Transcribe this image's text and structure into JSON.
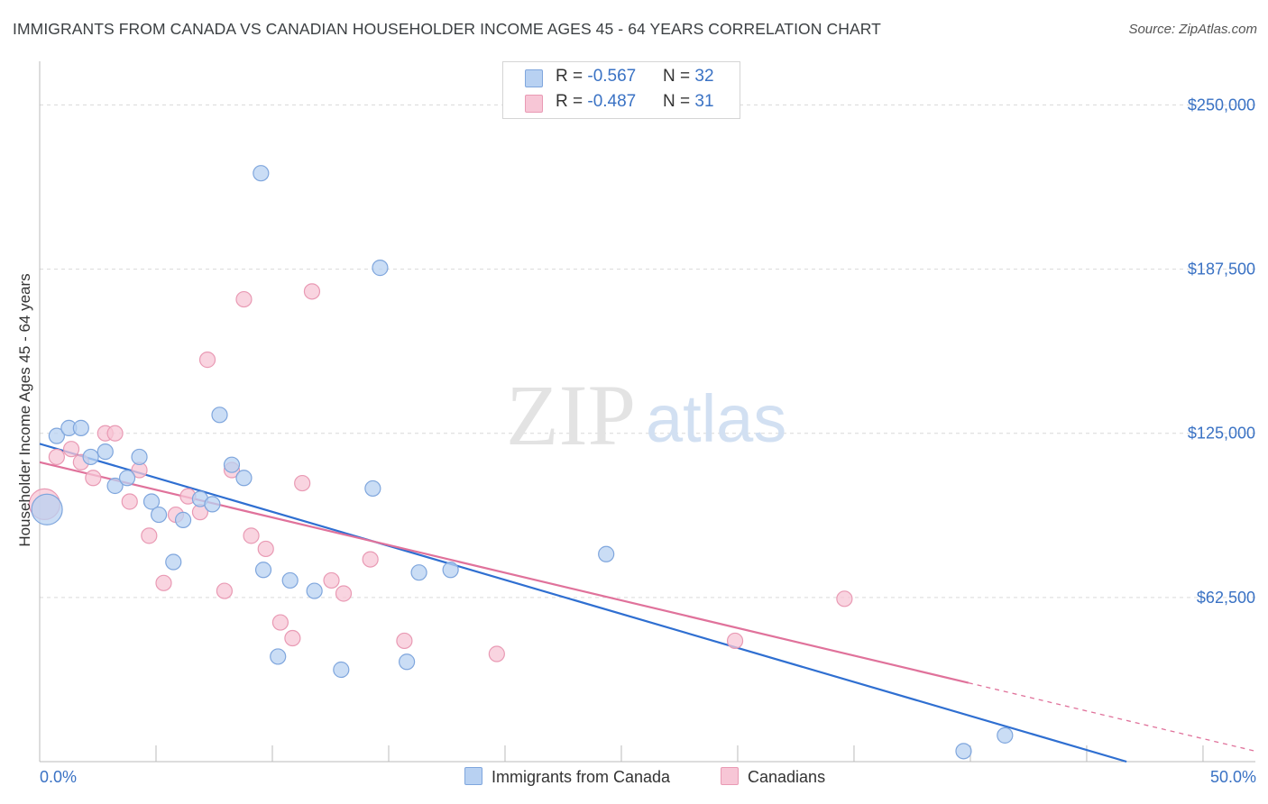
{
  "title": "IMMIGRANTS FROM CANADA VS CANADIAN HOUSEHOLDER INCOME AGES 45 - 64 YEARS CORRELATION CHART",
  "source": "Source: ZipAtlas.com",
  "watermark": {
    "zip": "ZIP",
    "atlas": "atlas"
  },
  "legend_top": {
    "rows": [
      {
        "r_label": "R = ",
        "r_value": "-0.567",
        "n_label": "N = ",
        "n_value": "32"
      },
      {
        "r_label": "R = ",
        "r_value": "-0.487",
        "n_label": "N = ",
        "n_value": "31"
      }
    ]
  },
  "legend_bottom": {
    "series1": "Immigrants from Canada",
    "series2": "Canadians"
  },
  "colors": {
    "blue_fill": "#b8d1f2",
    "blue_stroke": "#7fa6dd",
    "blue_line": "#2f6fd1",
    "pink_fill": "#f7c6d6",
    "pink_stroke": "#e99ab4",
    "pink_line": "#e0729b",
    "axis_text": "#3a72c4",
    "grid": "#d9d9d9"
  },
  "chart_data": {
    "type": "scatter",
    "title": "IMMIGRANTS FROM CANADA VS CANADIAN HOUSEHOLDER INCOME AGES 45 - 64 YEARS CORRELATION CHART",
    "xlabel": "",
    "ylabel": "Householder Income Ages 45 - 64 years",
    "xlim": [
      0,
      50
    ],
    "ylim": [
      0,
      262500
    ],
    "x_tick_labels": [
      "0.0%",
      "50.0%"
    ],
    "y_ticks": [
      62500,
      125000,
      187500,
      250000
    ],
    "y_tick_labels": [
      "$62,500",
      "$125,000",
      "$187,500",
      "$250,000"
    ],
    "grid": true,
    "legend_position": "top-center",
    "series": [
      {
        "name": "Immigrants from Canada",
        "color": "#b8d1f2",
        "points": [
          [
            0.3,
            96000,
            1
          ],
          [
            0.7,
            124000,
            0
          ],
          [
            1.2,
            127000,
            0
          ],
          [
            1.7,
            127000,
            0
          ],
          [
            2.1,
            116000,
            0
          ],
          [
            2.7,
            118000,
            0
          ],
          [
            3.1,
            105000,
            0
          ],
          [
            3.6,
            108000,
            0
          ],
          [
            4.1,
            116000,
            0
          ],
          [
            4.6,
            99000,
            0
          ],
          [
            4.9,
            94000,
            0
          ],
          [
            5.5,
            76000,
            0
          ],
          [
            5.9,
            92000,
            0
          ],
          [
            6.6,
            100000,
            0
          ],
          [
            7.1,
            98000,
            0
          ],
          [
            7.4,
            132000,
            0
          ],
          [
            7.9,
            113000,
            0
          ],
          [
            8.4,
            108000,
            0
          ],
          [
            9.1,
            224000,
            0
          ],
          [
            9.2,
            73000,
            0
          ],
          [
            9.8,
            40000,
            0
          ],
          [
            10.3,
            69000,
            0
          ],
          [
            11.3,
            65000,
            0
          ],
          [
            12.4,
            35000,
            0
          ],
          [
            13.7,
            104000,
            0
          ],
          [
            14.0,
            188000,
            0
          ],
          [
            15.1,
            38000,
            0
          ],
          [
            15.6,
            72000,
            0
          ],
          [
            16.9,
            73000,
            0
          ],
          [
            23.3,
            79000,
            0
          ],
          [
            38.0,
            4000,
            0
          ],
          [
            39.7,
            10000,
            0
          ]
        ],
        "trend": {
          "x0": 0,
          "y0": 121000,
          "x1": 44.7,
          "y1": 0
        }
      },
      {
        "name": "Canadians",
        "color": "#f7c6d6",
        "points": [
          [
            0.2,
            98000,
            1
          ],
          [
            0.7,
            116000,
            0
          ],
          [
            1.3,
            119000,
            0
          ],
          [
            1.7,
            114000,
            0
          ],
          [
            2.2,
            108000,
            0
          ],
          [
            2.7,
            125000,
            0
          ],
          [
            3.1,
            125000,
            0
          ],
          [
            3.7,
            99000,
            0
          ],
          [
            4.1,
            111000,
            0
          ],
          [
            4.5,
            86000,
            0
          ],
          [
            5.1,
            68000,
            0
          ],
          [
            5.6,
            94000,
            0
          ],
          [
            6.1,
            101000,
            0
          ],
          [
            6.6,
            95000,
            0
          ],
          [
            6.9,
            153000,
            0
          ],
          [
            7.6,
            65000,
            0
          ],
          [
            7.9,
            111000,
            0
          ],
          [
            8.4,
            176000,
            0
          ],
          [
            8.7,
            86000,
            0
          ],
          [
            9.3,
            81000,
            0
          ],
          [
            9.9,
            53000,
            0
          ],
          [
            10.4,
            47000,
            0
          ],
          [
            10.8,
            106000,
            0
          ],
          [
            11.2,
            179000,
            0
          ],
          [
            12.0,
            69000,
            0
          ],
          [
            12.5,
            64000,
            0
          ],
          [
            13.6,
            77000,
            0
          ],
          [
            15.0,
            46000,
            0
          ],
          [
            18.8,
            41000,
            0
          ],
          [
            28.6,
            46000,
            0
          ],
          [
            33.1,
            62000,
            0
          ]
        ],
        "trend": {
          "x0": 0,
          "y0": 114000,
          "x1": 38.2,
          "y1": 30000
        },
        "trend_dashed": {
          "x0": 38.2,
          "y0": 30000,
          "x1": 50,
          "y1": 4000
        }
      }
    ]
  }
}
